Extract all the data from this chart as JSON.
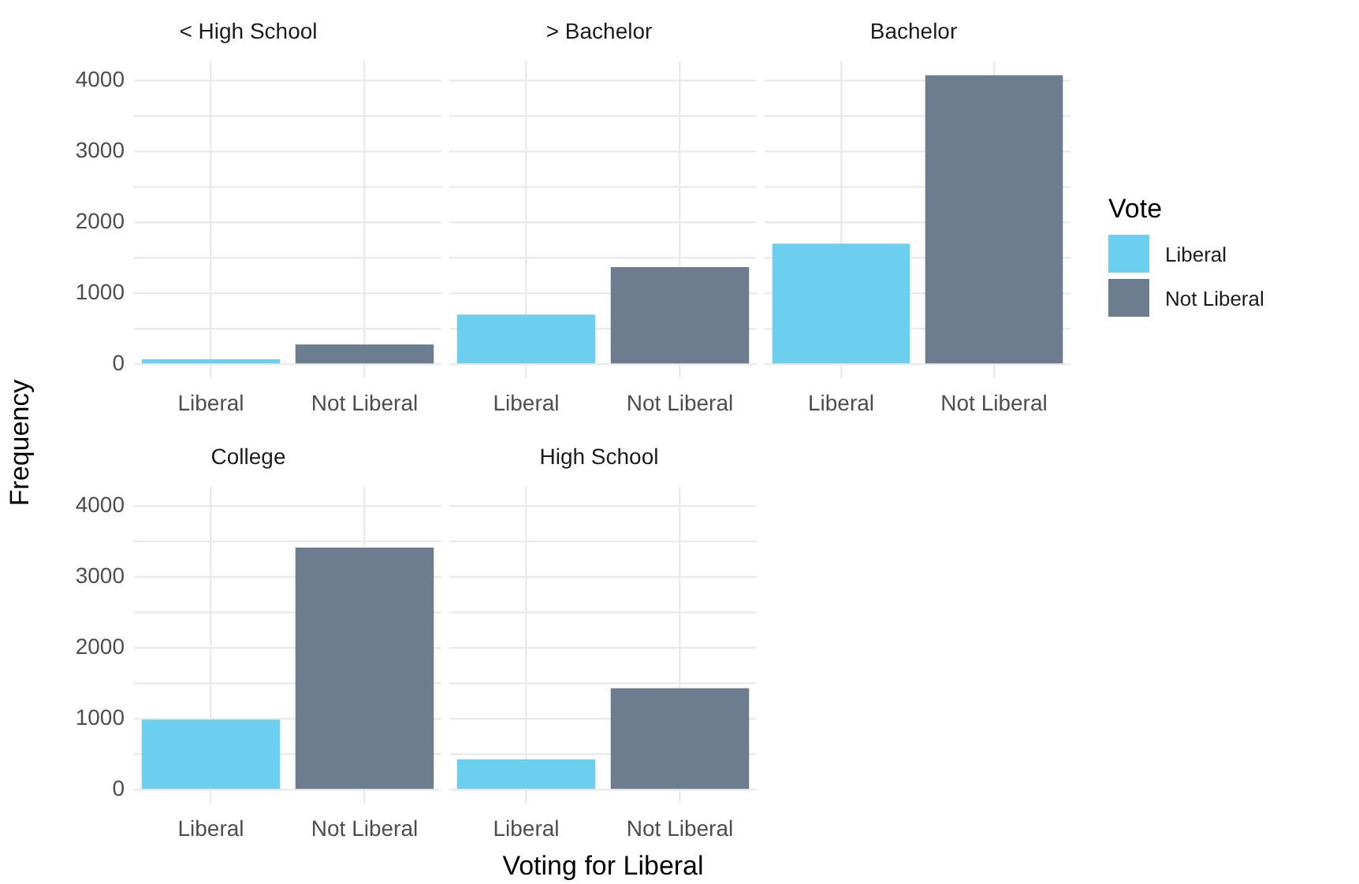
{
  "chart_data": [
    {
      "type": "bar",
      "title": "< High School",
      "ylabel": "Frequency",
      "categories": [
        "Liberal",
        "Not Liberal"
      ],
      "series": [
        {
          "color": "#6dcff0",
          "values": [
            70,
            null
          ]
        },
        {
          "color": "#6b7d8e",
          "values": [
            null,
            280
          ]
        }
      ],
      "ylim": [
        -200,
        4270
      ],
      "yticks": [
        0,
        {
          "value": 500,
          "label": null
        },
        1000,
        {
          "value": 1500,
          "label": null
        },
        2000,
        {
          "value": 2500,
          "label": null
        },
        3000,
        {
          "value": 3500,
          "label": null
        },
        4000
      ],
      "grid": true,
      "legend": false
    },
    {
      "type": "bar",
      "title": "> Bachelor",
      "categories": [
        "Liberal",
        "Not Liberal"
      ],
      "series": [
        {
          "color": "#6dcff0",
          "values": [
            700,
            null
          ]
        },
        {
          "color": "#6b7d8e",
          "values": [
            null,
            1370
          ]
        }
      ],
      "ylim": [
        -200,
        4270
      ],
      "yticks": [
        0,
        {
          "value": 500,
          "label": null
        },
        1000,
        {
          "value": 1500,
          "label": null
        },
        2000,
        {
          "value": 2500,
          "label": null
        },
        3000,
        {
          "value": 3500,
          "label": null
        },
        4000
      ],
      "grid": true,
      "legend": false,
      "tick_labels": "x"
    },
    {
      "type": "bar",
      "title": "Bachelor",
      "categories": [
        "Liberal",
        "Not Liberal"
      ],
      "legend_title": "Vote",
      "series": [
        {
          "name": "Liberal",
          "color": "#6dcff0",
          "values": [
            1700,
            null
          ]
        },
        {
          "name": "Not Liberal",
          "color": "#6b7d8e",
          "values": [
            null,
            4070
          ]
        }
      ],
      "ylim": [
        -200,
        4270
      ],
      "yticks": [
        0,
        {
          "value": 500,
          "label": null
        },
        1000,
        {
          "value": 1500,
          "label": null
        },
        2000,
        {
          "value": 2500,
          "label": null
        },
        3000,
        {
          "value": 3500,
          "label": null
        },
        4000
      ],
      "grid": true,
      "legend": "right",
      "tick_labels": "x"
    },
    {
      "type": "bar",
      "title": "College",
      "categories": [
        "Liberal",
        "Not Liberal"
      ],
      "series": [
        {
          "color": "#6dcff0",
          "values": [
            990,
            null
          ]
        },
        {
          "color": "#6b7d8e",
          "values": [
            null,
            3410
          ]
        }
      ],
      "ylim": [
        -200,
        4270
      ],
      "yticks": [
        0,
        {
          "value": 500,
          "label": null
        },
        1000,
        {
          "value": 1500,
          "label": null
        },
        2000,
        {
          "value": 2500,
          "label": null
        },
        3000,
        {
          "value": 3500,
          "label": null
        },
        4000
      ],
      "grid": true,
      "legend": false
    },
    {
      "type": "bar",
      "title": "High School",
      "xlabel": "Voting for Liberal",
      "categories": [
        "Liberal",
        "Not Liberal"
      ],
      "series": [
        {
          "color": "#6dcff0",
          "values": [
            430,
            null
          ]
        },
        {
          "color": "#6b7d8e",
          "values": [
            null,
            1430
          ]
        }
      ],
      "ylim": [
        -200,
        4270
      ],
      "yticks": [
        0,
        {
          "value": 500,
          "label": null
        },
        1000,
        {
          "value": 1500,
          "label": null
        },
        2000,
        {
          "value": 2500,
          "label": null
        },
        3000,
        {
          "value": 3500,
          "label": null
        },
        4000
      ],
      "grid": true,
      "legend": false,
      "tick_labels": "x"
    }
  ]
}
